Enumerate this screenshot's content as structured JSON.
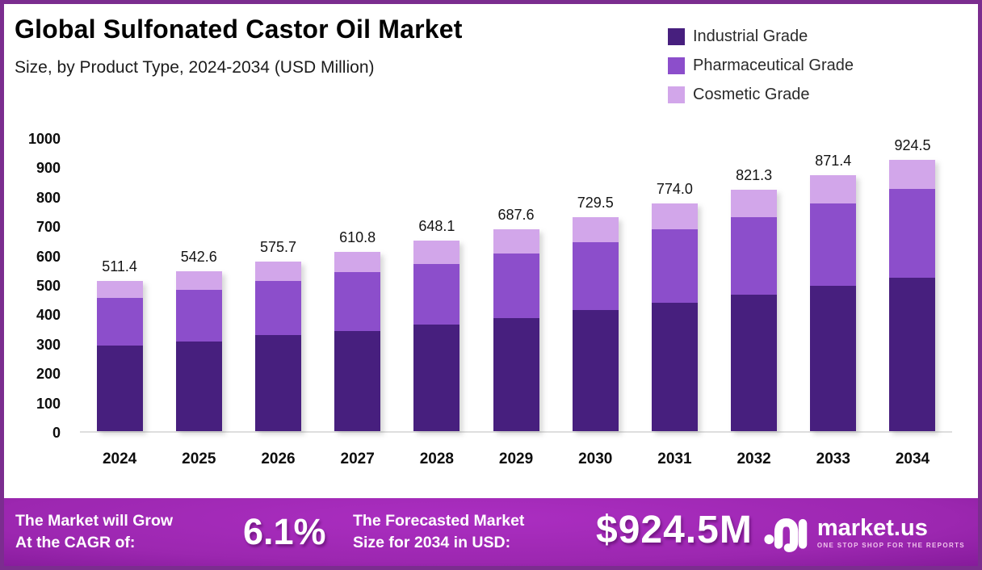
{
  "header": {
    "title": "Global Sulfonated Castor Oil Market",
    "subtitle": "Size, by Product Type, 2024-2034 (USD Million)"
  },
  "legend": {
    "items": [
      {
        "label": "Industrial Grade",
        "color": "#471f7e"
      },
      {
        "label": "Pharmaceutical Grade",
        "color": "#8c4ecb"
      },
      {
        "label": "Cosmetic Grade",
        "color": "#d2a6ea"
      }
    ]
  },
  "chart_data": {
    "type": "bar",
    "stacked": true,
    "title": "Global Sulfonated Castor Oil Market",
    "unit": "USD Million",
    "categories": [
      "2024",
      "2025",
      "2026",
      "2027",
      "2028",
      "2029",
      "2030",
      "2031",
      "2032",
      "2033",
      "2034"
    ],
    "series": [
      {
        "name": "Industrial Grade",
        "color": "#471f7e",
        "values": [
          290,
          306,
          326,
          342,
          364,
          386,
          411,
          438,
          464,
          495,
          523
        ]
      },
      {
        "name": "Pharmaceutical Grade",
        "color": "#8c4ecb",
        "values": [
          162,
          176,
          186,
          198,
          206,
          219,
          233,
          249,
          265,
          280,
          302
        ]
      },
      {
        "name": "Cosmetic Grade",
        "color": "#d2a6ea",
        "values": [
          59.4,
          60.6,
          63.7,
          70.8,
          78.1,
          82.6,
          85.5,
          87.0,
          92.3,
          96.4,
          99.5
        ]
      }
    ],
    "totals": [
      511.4,
      542.6,
      575.7,
      610.8,
      648.1,
      687.6,
      729.5,
      774.0,
      821.3,
      871.4,
      924.5
    ],
    "total_labels": [
      "511.4",
      "542.6",
      "575.7",
      "610.8",
      "648.1",
      "687.6",
      "729.5",
      "774.0",
      "821.3",
      "871.4",
      "924.5"
    ],
    "ylim": [
      0,
      1000
    ],
    "yticks": [
      0,
      100,
      200,
      300,
      400,
      500,
      600,
      700,
      800,
      900,
      1000
    ],
    "grid": false,
    "legend_position": "top-right"
  },
  "banner": {
    "left_line1": "The Market will Grow",
    "left_line2": "At the CAGR of:",
    "cagr": "6.1%",
    "mid_line1": "The Forecasted Market",
    "mid_line2": "Size for 2034 in USD:",
    "forecast_value": "$924.5M",
    "logo_text": "market.us",
    "logo_tagline": "ONE STOP SHOP FOR THE REPORTS"
  },
  "colors": {
    "page_border": "#7b2d8f",
    "background": "#ffffff",
    "axis_line": "#dedede",
    "banner_bright": "#ab2ec1",
    "banner_dark": "#570a68"
  }
}
